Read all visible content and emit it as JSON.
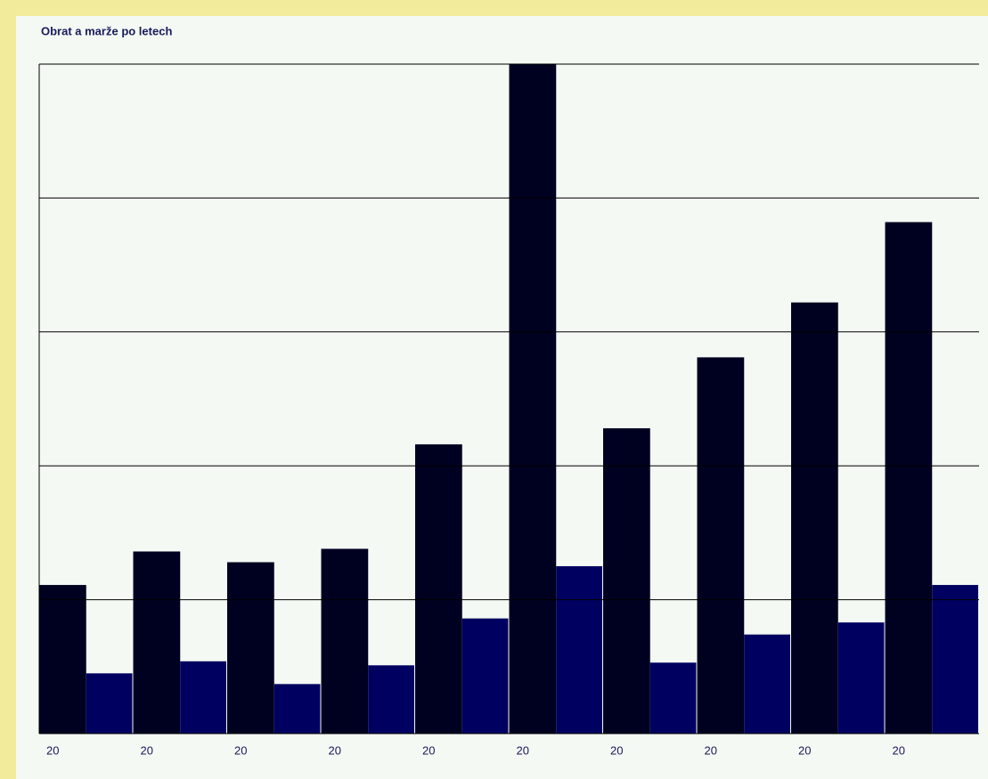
{
  "chart_data": {
    "type": "bar",
    "title": "Obrat a marže po letech",
    "categories": [
      "20",
      "20",
      "20",
      "20",
      "20",
      "20",
      "20",
      "20",
      "20",
      "20"
    ],
    "series": [
      {
        "color": "#000020",
        "values": [
          1.11,
          1.36,
          1.28,
          1.38,
          2.16,
          5.0,
          2.28,
          2.81,
          3.22,
          3.82
        ]
      },
      {
        "color": "#000060",
        "values": [
          0.45,
          0.54,
          0.37,
          0.51,
          0.86,
          1.25,
          0.53,
          0.74,
          0.83,
          1.11
        ]
      }
    ],
    "ylim": [
      0,
      5
    ],
    "yticks": [
      0,
      1,
      2,
      3,
      4,
      5
    ],
    "grid": true
  }
}
